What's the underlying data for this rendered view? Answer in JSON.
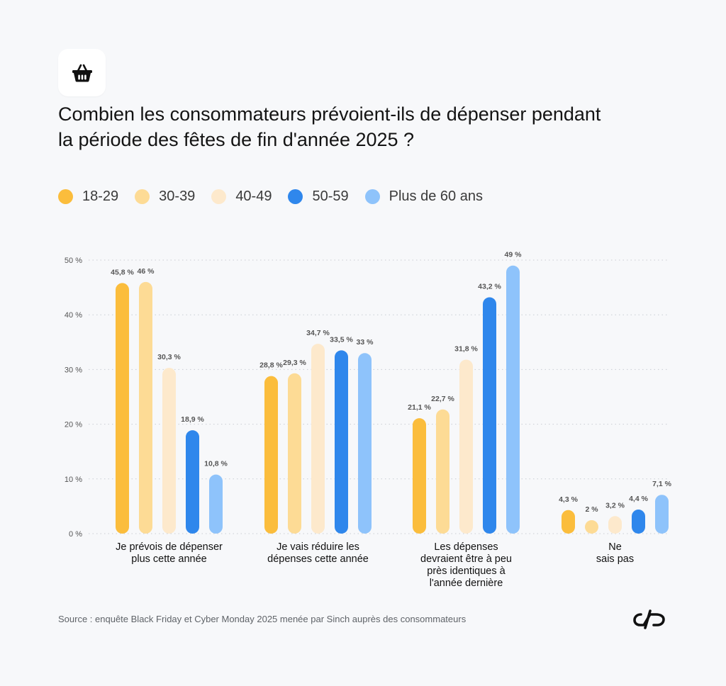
{
  "header": {
    "icon": "shopping-basket-icon",
    "title_line1": "Combien les consommateurs prévoient-ils de dépenser pendant",
    "title_line2": "la période des fêtes de fin d'année 2025 ?"
  },
  "legend": [
    {
      "label": "18-29",
      "color": "#fbbd3c"
    },
    {
      "label": "30-39",
      "color": "#fddb95"
    },
    {
      "label": "40-49",
      "color": "#fde9cc"
    },
    {
      "label": "50-59",
      "color": "#2f87ec"
    },
    {
      "label": "Plus de 60 ans",
      "color": "#8ec3fb"
    }
  ],
  "chart_data": {
    "type": "bar",
    "title": "Combien les consommateurs prévoient-ils de dépenser pendant la période des fêtes de fin d'année 2025 ?",
    "xlabel": "",
    "ylabel": "",
    "ylim": [
      0,
      50
    ],
    "y_ticks": [
      0,
      10,
      20,
      30,
      40,
      50
    ],
    "y_tick_labels": [
      "0 %",
      "10 %",
      "20 %",
      "30 %",
      "40 %",
      "50 %"
    ],
    "grid": true,
    "legend_position": "top-left",
    "categories": [
      [
        "Je prévois de dépenser",
        "plus cette année"
      ],
      [
        "Je vais réduire les",
        "dépenses cette année"
      ],
      [
        "Les dépenses",
        "devraient être à peu",
        "près identiques à",
        "l'année dernière"
      ],
      [
        "Ne",
        "sais pas"
      ]
    ],
    "series": [
      {
        "name": "18-29",
        "values": [
          45.8,
          28.8,
          21.1,
          4.3
        ],
        "labels": [
          "45,8 %",
          "28,8 %",
          "21,1 %",
          "4,3 %"
        ]
      },
      {
        "name": "30-39",
        "values": [
          46,
          29.3,
          22.7,
          2
        ],
        "labels": [
          "46 %",
          "29,3 %",
          "22,7 %",
          "2 %"
        ]
      },
      {
        "name": "40-49",
        "values": [
          30.3,
          34.7,
          31.8,
          3.2
        ],
        "labels": [
          "30,3 %",
          "34,7 %",
          "31,8 %",
          "3,2 %"
        ]
      },
      {
        "name": "50-59",
        "values": [
          18.9,
          33.5,
          43.2,
          4.4
        ],
        "labels": [
          "18,9 %",
          "33,5 %",
          "43,2 %",
          "4,4 %"
        ]
      },
      {
        "name": "Plus de 60 ans",
        "values": [
          10.8,
          33,
          49,
          7.1
        ],
        "labels": [
          "10,8 %",
          "33 %",
          "49 %",
          "7,1 %"
        ]
      }
    ]
  },
  "footer": {
    "source": "Source : enquête Black Friday et Cyber Monday 2025 menée par Sinch auprès des consommateurs",
    "logo": "sinch-logo"
  }
}
